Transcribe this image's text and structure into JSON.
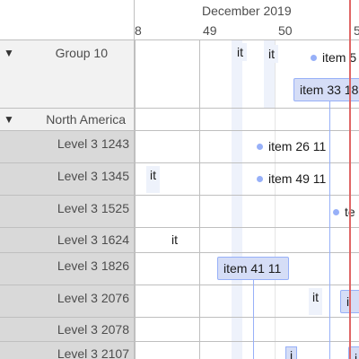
{
  "header": {
    "month_label": "December 2019",
    "week_labels": [
      "8",
      "49",
      "50",
      "5"
    ]
  },
  "groups": [
    {
      "label": "Group 10",
      "expanded": true
    },
    {
      "label": "North America",
      "expanded": true
    }
  ],
  "rows": [
    {
      "label": "Level 3 1243"
    },
    {
      "label": "Level 3 1345"
    },
    {
      "label": "Level 3 1525"
    },
    {
      "label": "Level 3 1624"
    },
    {
      "label": "Level 3 1826"
    },
    {
      "label": "Level 3 2076"
    },
    {
      "label": "Level 3 2078"
    },
    {
      "label": "Level 3 2107"
    }
  ],
  "items": {
    "g10_stub_a": "it",
    "g10_stub_b": "it",
    "g10_item5": "item 5",
    "g10_item33": "item 33 18",
    "r1243_item26": "item 26 11",
    "r1345_stub": "it",
    "r1345_item49": "item 49 11",
    "r1525_te": "te",
    "r1624_stub": "it",
    "r1826_item41": "item 41 11",
    "r2076_stub": "it",
    "r2076_box": "i",
    "r2107_stub": "i",
    "r2107_box": "i"
  },
  "colors": {
    "item_fill": "#d5ddf6",
    "item_border": "#97b0f8",
    "now_line": "#e06666",
    "group_bg": "#f2f2f2",
    "nested_bg": "#d9d9d9"
  }
}
